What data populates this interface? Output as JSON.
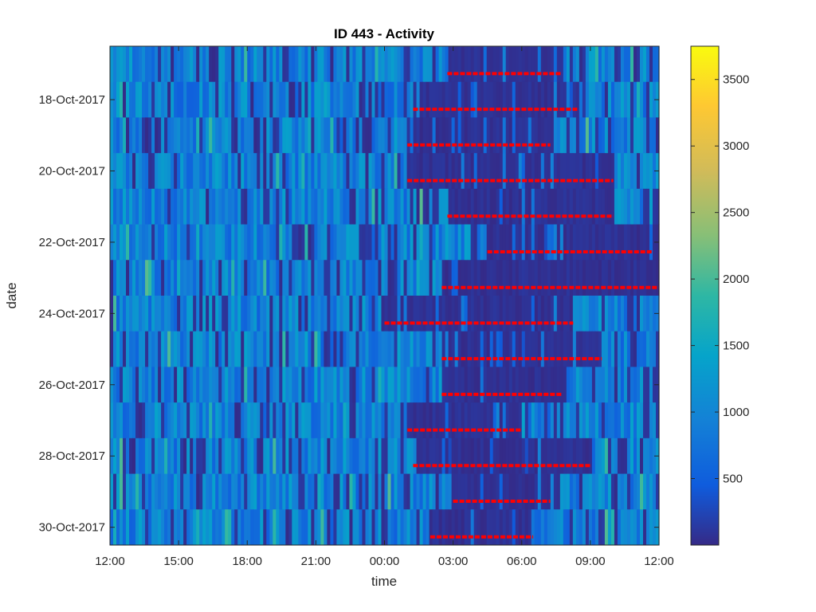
{
  "chart_data": {
    "type": "heatmap",
    "title": "ID 443 - Activity",
    "xlabel": "time",
    "ylabel": "date",
    "x_ticks": [
      "12:00",
      "15:00",
      "18:00",
      "21:00",
      "00:00",
      "03:00",
      "06:00",
      "09:00",
      "12:00"
    ],
    "y_ticks": [
      "18-Oct-2017",
      "20-Oct-2017",
      "22-Oct-2017",
      "24-Oct-2017",
      "26-Oct-2017",
      "28-Oct-2017",
      "30-Oct-2017"
    ],
    "rows": [
      "17-Oct-2017",
      "18-Oct-2017",
      "19-Oct-2017",
      "20-Oct-2017",
      "21-Oct-2017",
      "22-Oct-2017",
      "23-Oct-2017",
      "24-Oct-2017",
      "25-Oct-2017",
      "26-Oct-2017",
      "27-Oct-2017",
      "28-Oct-2017",
      "29-Oct-2017",
      "30-Oct-2017"
    ],
    "x_range": [
      "12:00",
      "12:00 (+1 day)"
    ],
    "colorbar": {
      "colormap": "parula",
      "ticks": [
        500,
        1000,
        1500,
        2000,
        2500,
        3000,
        3500
      ],
      "range": [
        0,
        3750
      ]
    },
    "sleep_marker_color": "#ff0000",
    "sleep_intervals": [
      {
        "date": "17-Oct-2017",
        "start": "02:45",
        "end": "07:45"
      },
      {
        "date": "18-Oct-2017",
        "start": "01:15",
        "end": "08:30"
      },
      {
        "date": "19-Oct-2017",
        "start": "01:00",
        "end": "07:15"
      },
      {
        "date": "20-Oct-2017",
        "start": "01:00",
        "end": "10:00"
      },
      {
        "date": "21-Oct-2017",
        "start": "02:45",
        "end": "10:00"
      },
      {
        "date": "22-Oct-2017",
        "start": "04:30",
        "end": "11:45"
      },
      {
        "date": "23-Oct-2017",
        "start": "02:30",
        "end": "12:00"
      },
      {
        "date": "24-Oct-2017",
        "start": "00:00",
        "end": "08:15"
      },
      {
        "date": "25-Oct-2017",
        "start": "02:30",
        "end": "09:30"
      },
      {
        "date": "26-Oct-2017",
        "start": "02:30",
        "end": "07:45"
      },
      {
        "date": "27-Oct-2017",
        "start": "01:00",
        "end": "06:00"
      },
      {
        "date": "28-Oct-2017",
        "start": "01:15",
        "end": "09:00"
      },
      {
        "date": "29-Oct-2017",
        "start": "03:00",
        "end": "07:15"
      },
      {
        "date": "30-Oct-2017",
        "start": "02:00",
        "end": "06:30"
      }
    ]
  }
}
